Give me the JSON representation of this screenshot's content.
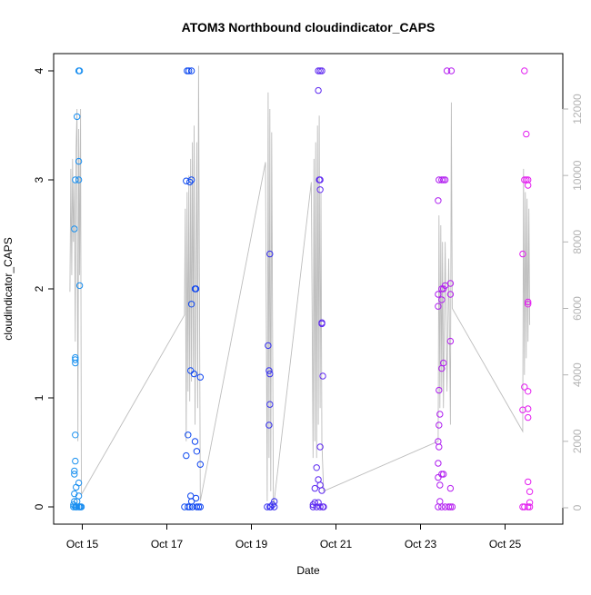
{
  "chart_data": {
    "type": "scatter",
    "title": "ATOM3 Northbound cloudindicator_CAPS",
    "xlabel": "Date",
    "ylabel": "cloudindicator_CAPS",
    "x_ticks": [
      "Oct 15",
      "Oct 17",
      "Oct 19",
      "Oct 21",
      "Oct 23",
      "Oct 25"
    ],
    "y_ticks": [
      "0",
      "1",
      "2",
      "3",
      "4"
    ],
    "y2_ticks": [
      "0",
      "2000",
      "4000",
      "6000",
      "8000",
      "10000",
      "12000"
    ],
    "ylim": [
      0,
      4
    ],
    "y2lim": [
      0,
      12000
    ],
    "grid": false,
    "point_color_scale": [
      "#1EA7F0",
      "#0A3BF0",
      "#8A1EF0",
      "#F01EF0"
    ],
    "line_color": "#bdbdbd",
    "series": [
      {
        "name": "",
        "kind": "points",
        "points": [
          {
            "x": "2023-10-14T19:00",
            "y": 0.0
          },
          {
            "x": "2023-10-14T19:00",
            "y": 0.02
          },
          {
            "x": "2023-10-14T19:30",
            "y": 0.05
          },
          {
            "x": "2023-10-14T19:30",
            "y": 0.12
          },
          {
            "x": "2023-10-14T19:30",
            "y": 0.3
          },
          {
            "x": "2023-10-14T19:30",
            "y": 0.33
          },
          {
            "x": "2023-10-14T19:30",
            "y": 2.55
          },
          {
            "x": "2023-10-14T20:00",
            "y": 1.32
          },
          {
            "x": "2023-10-14T20:00",
            "y": 1.35
          },
          {
            "x": "2023-10-14T20:00",
            "y": 1.37
          },
          {
            "x": "2023-10-14T20:00",
            "y": 0.42
          },
          {
            "x": "2023-10-14T20:00",
            "y": 0.66
          },
          {
            "x": "2023-10-14T20:00",
            "y": 3.0
          },
          {
            "x": "2023-10-14T20:00",
            "y": 0.0
          },
          {
            "x": "2023-10-14T20:30",
            "y": 0.18
          },
          {
            "x": "2023-10-14T20:30",
            "y": 0.0
          },
          {
            "x": "2023-10-14T21:00",
            "y": 3.58
          },
          {
            "x": "2023-10-14T21:00",
            "y": 0.05
          },
          {
            "x": "2023-10-14T21:00",
            "y": 0.0
          },
          {
            "x": "2023-10-14T22:00",
            "y": 3.0
          },
          {
            "x": "2023-10-14T22:00",
            "y": 3.17
          },
          {
            "x": "2023-10-14T22:00",
            "y": 4.0
          },
          {
            "x": "2023-10-14T22:00",
            "y": 0.22
          },
          {
            "x": "2023-10-14T22:00",
            "y": 0.1
          },
          {
            "x": "2023-10-14T22:00",
            "y": 0.0
          },
          {
            "x": "2023-10-14T22:30",
            "y": 4.0
          },
          {
            "x": "2023-10-14T22:30",
            "y": 2.03
          },
          {
            "x": "2023-10-14T22:30",
            "y": 0.0
          },
          {
            "x": "2023-10-14T23:00",
            "y": 0.0
          },
          {
            "x": "2023-10-14T23:30",
            "y": 0.0
          },
          {
            "x": "2023-10-17T10:00",
            "y": 0.0
          },
          {
            "x": "2023-10-17T11:00",
            "y": 0.47
          },
          {
            "x": "2023-10-17T11:00",
            "y": 2.99
          },
          {
            "x": "2023-10-17T11:30",
            "y": 4.0
          },
          {
            "x": "2023-10-17T12:00",
            "y": 0.66
          },
          {
            "x": "2023-10-17T12:00",
            "y": 0.0
          },
          {
            "x": "2023-10-17T12:30",
            "y": 4.0
          },
          {
            "x": "2023-10-17T13:00",
            "y": 2.98
          },
          {
            "x": "2023-10-17T13:00",
            "y": 0.0
          },
          {
            "x": "2023-10-17T13:30",
            "y": 1.25
          },
          {
            "x": "2023-10-17T13:30",
            "y": 0.1
          },
          {
            "x": "2023-10-17T14:00",
            "y": 3.0
          },
          {
            "x": "2023-10-17T14:00",
            "y": 4.0
          },
          {
            "x": "2023-10-17T14:00",
            "y": 1.86
          },
          {
            "x": "2023-10-17T14:00",
            "y": 0.05
          },
          {
            "x": "2023-10-17T14:30",
            "y": 0.0
          },
          {
            "x": "2023-10-17T15:30",
            "y": 1.22
          },
          {
            "x": "2023-10-17T16:00",
            "y": 2.0
          },
          {
            "x": "2023-10-17T16:00",
            "y": 0.6
          },
          {
            "x": "2023-10-17T16:30",
            "y": 2.0
          },
          {
            "x": "2023-10-17T16:30",
            "y": 0.08
          },
          {
            "x": "2023-10-17T17:00",
            "y": 0.51
          },
          {
            "x": "2023-10-17T17:00",
            "y": 0.0
          },
          {
            "x": "2023-10-17T18:00",
            "y": 0.0
          },
          {
            "x": "2023-10-17T19:00",
            "y": 1.19
          },
          {
            "x": "2023-10-17T19:00",
            "y": 0.39
          },
          {
            "x": "2023-10-17T19:00",
            "y": 0.0
          },
          {
            "x": "2023-10-19T09:00",
            "y": 0.0
          },
          {
            "x": "2023-10-19T09:30",
            "y": 1.48
          },
          {
            "x": "2023-10-19T10:00",
            "y": 1.25
          },
          {
            "x": "2023-10-19T10:00",
            "y": 0.75
          },
          {
            "x": "2023-10-19T10:30",
            "y": 2.32
          },
          {
            "x": "2023-10-19T10:30",
            "y": 1.22
          },
          {
            "x": "2023-10-19T10:30",
            "y": 0.94
          },
          {
            "x": "2023-10-19T10:30",
            "y": 0.0
          },
          {
            "x": "2023-10-19T11:00",
            "y": 0.0
          },
          {
            "x": "2023-10-19T12:00",
            "y": 0.02
          },
          {
            "x": "2023-10-19T13:00",
            "y": 0.05
          },
          {
            "x": "2023-10-19T13:00",
            "y": 0.0
          },
          {
            "x": "2023-10-20T11:00",
            "y": 0.0
          },
          {
            "x": "2023-10-20T11:00",
            "y": 0.02
          },
          {
            "x": "2023-10-20T12:00",
            "y": 0.17
          },
          {
            "x": "2023-10-20T12:00",
            "y": 0.04
          },
          {
            "x": "2023-10-20T13:00",
            "y": 0.36
          },
          {
            "x": "2023-10-20T13:00",
            "y": 0.0
          },
          {
            "x": "2023-10-20T14:00",
            "y": 4.0
          },
          {
            "x": "2023-10-20T14:00",
            "y": 3.82
          },
          {
            "x": "2023-10-20T14:00",
            "y": 0.25
          },
          {
            "x": "2023-10-20T14:00",
            "y": 0.04
          },
          {
            "x": "2023-10-20T14:30",
            "y": 3.0
          },
          {
            "x": "2023-10-20T15:00",
            "y": 4.0
          },
          {
            "x": "2023-10-20T15:00",
            "y": 3.0
          },
          {
            "x": "2023-10-20T15:00",
            "y": 2.91
          },
          {
            "x": "2023-10-20T15:00",
            "y": 0.55
          },
          {
            "x": "2023-10-20T15:00",
            "y": 0.2
          },
          {
            "x": "2023-10-20T15:00",
            "y": 0.0
          },
          {
            "x": "2023-10-20T16:00",
            "y": 4.0
          },
          {
            "x": "2023-10-20T16:00",
            "y": 1.68
          },
          {
            "x": "2023-10-20T16:00",
            "y": 1.69
          },
          {
            "x": "2023-10-20T16:00",
            "y": 0.15
          },
          {
            "x": "2023-10-20T16:30",
            "y": 1.2
          },
          {
            "x": "2023-10-20T16:30",
            "y": 0.0
          },
          {
            "x": "2023-10-20T17:00",
            "y": 0.0
          },
          {
            "x": "2023-10-23T10:00",
            "y": 1.84
          },
          {
            "x": "2023-10-23T10:00",
            "y": 2.81
          },
          {
            "x": "2023-10-23T10:00",
            "y": 1.95
          },
          {
            "x": "2023-10-23T10:00",
            "y": 0.6
          },
          {
            "x": "2023-10-23T10:00",
            "y": 0.4
          },
          {
            "x": "2023-10-23T10:00",
            "y": 0.27
          },
          {
            "x": "2023-10-23T10:00",
            "y": 0.0
          },
          {
            "x": "2023-10-23T10:30",
            "y": 3.0
          },
          {
            "x": "2023-10-23T10:30",
            "y": 1.07
          },
          {
            "x": "2023-10-23T10:30",
            "y": 0.75
          },
          {
            "x": "2023-10-23T10:30",
            "y": 0.55
          },
          {
            "x": "2023-10-23T11:00",
            "y": 0.85
          },
          {
            "x": "2023-10-23T11:00",
            "y": 0.2
          },
          {
            "x": "2023-10-23T11:00",
            "y": 0.05
          },
          {
            "x": "2023-10-23T12:00",
            "y": 3.0
          },
          {
            "x": "2023-10-23T12:00",
            "y": 2.0
          },
          {
            "x": "2023-10-23T12:00",
            "y": 1.9
          },
          {
            "x": "2023-10-23T12:00",
            "y": 1.27
          },
          {
            "x": "2023-10-23T12:00",
            "y": 0.3
          },
          {
            "x": "2023-10-23T12:00",
            "y": 0.0
          },
          {
            "x": "2023-10-23T13:00",
            "y": 3.0
          },
          {
            "x": "2023-10-23T13:00",
            "y": 2.0
          },
          {
            "x": "2023-10-23T13:00",
            "y": 1.32
          },
          {
            "x": "2023-10-23T13:00",
            "y": 0.3
          },
          {
            "x": "2023-10-23T14:00",
            "y": 3.0
          },
          {
            "x": "2023-10-23T14:00",
            "y": 2.03
          },
          {
            "x": "2023-10-23T14:00",
            "y": 0.0
          },
          {
            "x": "2023-10-23T15:00",
            "y": 4.0
          },
          {
            "x": "2023-10-23T16:00",
            "y": 0.0
          },
          {
            "x": "2023-10-23T17:00",
            "y": 2.05
          },
          {
            "x": "2023-10-23T17:00",
            "y": 1.95
          },
          {
            "x": "2023-10-23T17:00",
            "y": 1.52
          },
          {
            "x": "2023-10-23T17:00",
            "y": 0.17
          },
          {
            "x": "2023-10-23T17:00",
            "y": 0.0
          },
          {
            "x": "2023-10-23T17:30",
            "y": 4.0
          },
          {
            "x": "2023-10-23T18:00",
            "y": 0.0
          },
          {
            "x": "2023-10-25T10:00",
            "y": 0.89
          },
          {
            "x": "2023-10-25T10:00",
            "y": 2.32
          },
          {
            "x": "2023-10-25T10:00",
            "y": 0.0
          },
          {
            "x": "2023-10-25T11:00",
            "y": 4.0
          },
          {
            "x": "2023-10-25T11:00",
            "y": 3.0
          },
          {
            "x": "2023-10-25T11:00",
            "y": 1.1
          },
          {
            "x": "2023-10-25T11:00",
            "y": 0.0
          },
          {
            "x": "2023-10-25T12:00",
            "y": 3.42
          },
          {
            "x": "2023-10-25T12:00",
            "y": 3.0
          },
          {
            "x": "2023-10-25T13:00",
            "y": 3.0
          },
          {
            "x": "2023-10-25T13:00",
            "y": 2.95
          },
          {
            "x": "2023-10-25T13:00",
            "y": 1.88
          },
          {
            "x": "2023-10-25T13:00",
            "y": 1.86
          },
          {
            "x": "2023-10-25T13:00",
            "y": 1.06
          },
          {
            "x": "2023-10-25T13:00",
            "y": 0.9
          },
          {
            "x": "2023-10-25T13:00",
            "y": 0.82
          },
          {
            "x": "2023-10-25T13:00",
            "y": 0.23
          },
          {
            "x": "2023-10-25T13:00",
            "y": 0.0
          },
          {
            "x": "2023-10-25T14:00",
            "y": 0.14
          },
          {
            "x": "2023-10-25T14:00",
            "y": 0.04
          },
          {
            "x": "2023-10-25T14:00",
            "y": 0.0
          }
        ]
      },
      {
        "name": "",
        "kind": "line",
        "axis": "right",
        "points": [
          {
            "x": "2023-10-14T17:00",
            "y": 6500
          },
          {
            "x": "2023-10-14T17:30",
            "y": 10200
          },
          {
            "x": "2023-10-14T18:00",
            "y": 7000
          },
          {
            "x": "2023-10-14T18:30",
            "y": 10500
          },
          {
            "x": "2023-10-14T19:00",
            "y": 8000
          },
          {
            "x": "2023-10-14T19:30",
            "y": 9800
          },
          {
            "x": "2023-10-14T20:00",
            "y": 5000
          },
          {
            "x": "2023-10-14T20:30",
            "y": 10800
          },
          {
            "x": "2023-10-14T21:00",
            "y": 12000
          },
          {
            "x": "2023-10-14T21:30",
            "y": 2000
          },
          {
            "x": "2023-10-14T22:00",
            "y": 11400
          },
          {
            "x": "2023-10-14T22:30",
            "y": 7000
          },
          {
            "x": "2023-10-14T23:00",
            "y": 12000
          },
          {
            "x": "2023-10-14T23:30",
            "y": 400
          },
          {
            "x": "2023-10-17T10:00",
            "y": 5800
          },
          {
            "x": "2023-10-17T10:30",
            "y": 9000
          },
          {
            "x": "2023-10-17T11:00",
            "y": 2000
          },
          {
            "x": "2023-10-17T11:30",
            "y": 9500
          },
          {
            "x": "2023-10-17T12:00",
            "y": 3500
          },
          {
            "x": "2023-10-17T12:30",
            "y": 10000
          },
          {
            "x": "2023-10-17T13:00",
            "y": 3200
          },
          {
            "x": "2023-10-17T13:30",
            "y": 10500
          },
          {
            "x": "2023-10-17T14:00",
            "y": 3800
          },
          {
            "x": "2023-10-17T14:30",
            "y": 11000
          },
          {
            "x": "2023-10-17T15:00",
            "y": 4200
          },
          {
            "x": "2023-10-17T15:30",
            "y": 11500
          },
          {
            "x": "2023-10-17T16:00",
            "y": 2500
          },
          {
            "x": "2023-10-17T17:00",
            "y": 11000
          },
          {
            "x": "2023-10-17T17:30",
            "y": 3000
          },
          {
            "x": "2023-10-17T18:00",
            "y": 13300
          },
          {
            "x": "2023-10-17T19:00",
            "y": 200
          },
          {
            "x": "2023-10-19T08:00",
            "y": 10400
          },
          {
            "x": "2023-10-19T09:00",
            "y": 200
          },
          {
            "x": "2023-10-19T09:30",
            "y": 12500
          },
          {
            "x": "2023-10-19T10:00",
            "y": 1500
          },
          {
            "x": "2023-10-19T10:30",
            "y": 12000
          },
          {
            "x": "2023-10-19T11:00",
            "y": 500
          },
          {
            "x": "2023-10-19T11:30",
            "y": 11300
          },
          {
            "x": "2023-10-19T12:30",
            "y": 0
          },
          {
            "x": "2023-10-20T10:00",
            "y": 9800
          },
          {
            "x": "2023-10-20T11:00",
            "y": 1500
          },
          {
            "x": "2023-10-20T11:30",
            "y": 10500
          },
          {
            "x": "2023-10-20T12:00",
            "y": 2000
          },
          {
            "x": "2023-10-20T12:30",
            "y": 11000
          },
          {
            "x": "2023-10-20T13:00",
            "y": 1500
          },
          {
            "x": "2023-10-20T13:30",
            "y": 11500
          },
          {
            "x": "2023-10-20T14:00",
            "y": 2500
          },
          {
            "x": "2023-10-20T14:30",
            "y": 11800
          },
          {
            "x": "2023-10-20T15:00",
            "y": 3000
          },
          {
            "x": "2023-10-20T15:30",
            "y": 9500
          },
          {
            "x": "2023-10-20T16:00",
            "y": 2000
          },
          {
            "x": "2023-10-20T17:00",
            "y": 500
          },
          {
            "x": "2023-10-23T10:00",
            "y": 2000
          },
          {
            "x": "2023-10-23T10:30",
            "y": 8800
          },
          {
            "x": "2023-10-23T11:00",
            "y": 3000
          },
          {
            "x": "2023-10-23T11:30",
            "y": 8500
          },
          {
            "x": "2023-10-23T12:00",
            "y": 3500
          },
          {
            "x": "2023-10-23T12:30",
            "y": 8000
          },
          {
            "x": "2023-10-23T13:00",
            "y": 3000
          },
          {
            "x": "2023-10-23T14:00",
            "y": 8000
          },
          {
            "x": "2023-10-23T15:00",
            "y": 3500
          },
          {
            "x": "2023-10-23T16:00",
            "y": 7500
          },
          {
            "x": "2023-10-23T17:00",
            "y": 2500
          },
          {
            "x": "2023-10-23T17:30",
            "y": 12200
          },
          {
            "x": "2023-10-23T18:00",
            "y": 6000
          },
          {
            "x": "2023-10-25T10:00",
            "y": 2300
          },
          {
            "x": "2023-10-25T10:30",
            "y": 10200
          },
          {
            "x": "2023-10-25T11:00",
            "y": 4000
          },
          {
            "x": "2023-10-25T11:30",
            "y": 9500
          },
          {
            "x": "2023-10-25T12:00",
            "y": 4500
          },
          {
            "x": "2023-10-25T12:30",
            "y": 9300
          },
          {
            "x": "2023-10-25T13:00",
            "y": 5000
          },
          {
            "x": "2023-10-25T13:30",
            "y": 9000
          },
          {
            "x": "2023-10-25T14:00",
            "y": 5500
          }
        ]
      }
    ]
  }
}
